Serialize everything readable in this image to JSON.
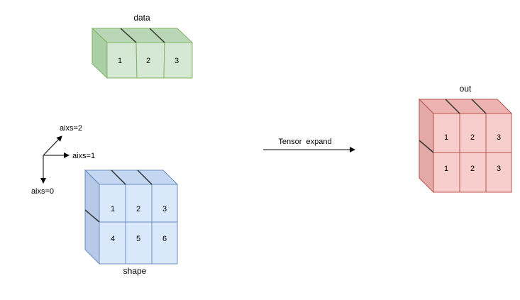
{
  "data_block": {
    "label": "data",
    "values": [
      "1",
      "2",
      "3"
    ],
    "colors": {
      "front": "#d5e8d4",
      "top": "#b9d7b6",
      "side": "#a9cfa5",
      "stroke": "#82b366"
    }
  },
  "shape_block": {
    "label": "shape",
    "rows": [
      [
        "1",
        "2",
        "3"
      ],
      [
        "4",
        "5",
        "6"
      ]
    ],
    "colors": {
      "front": "#dae8fc",
      "top": "#c3d6f2",
      "side": "#b6c9e6",
      "stroke": "#6c8ebf"
    }
  },
  "out_block": {
    "label": "out",
    "rows": [
      [
        "1",
        "2",
        "3"
      ],
      [
        "1",
        "2",
        "3"
      ]
    ],
    "colors": {
      "front": "#f8cecc",
      "top": "#edb3b1",
      "side": "#e2a9a7",
      "stroke": "#b85450"
    }
  },
  "axes": {
    "axis0": "aixs=0",
    "axis1": "aixs=1",
    "axis2": "aixs=2"
  },
  "operation": {
    "label": "Tensor  expand"
  }
}
